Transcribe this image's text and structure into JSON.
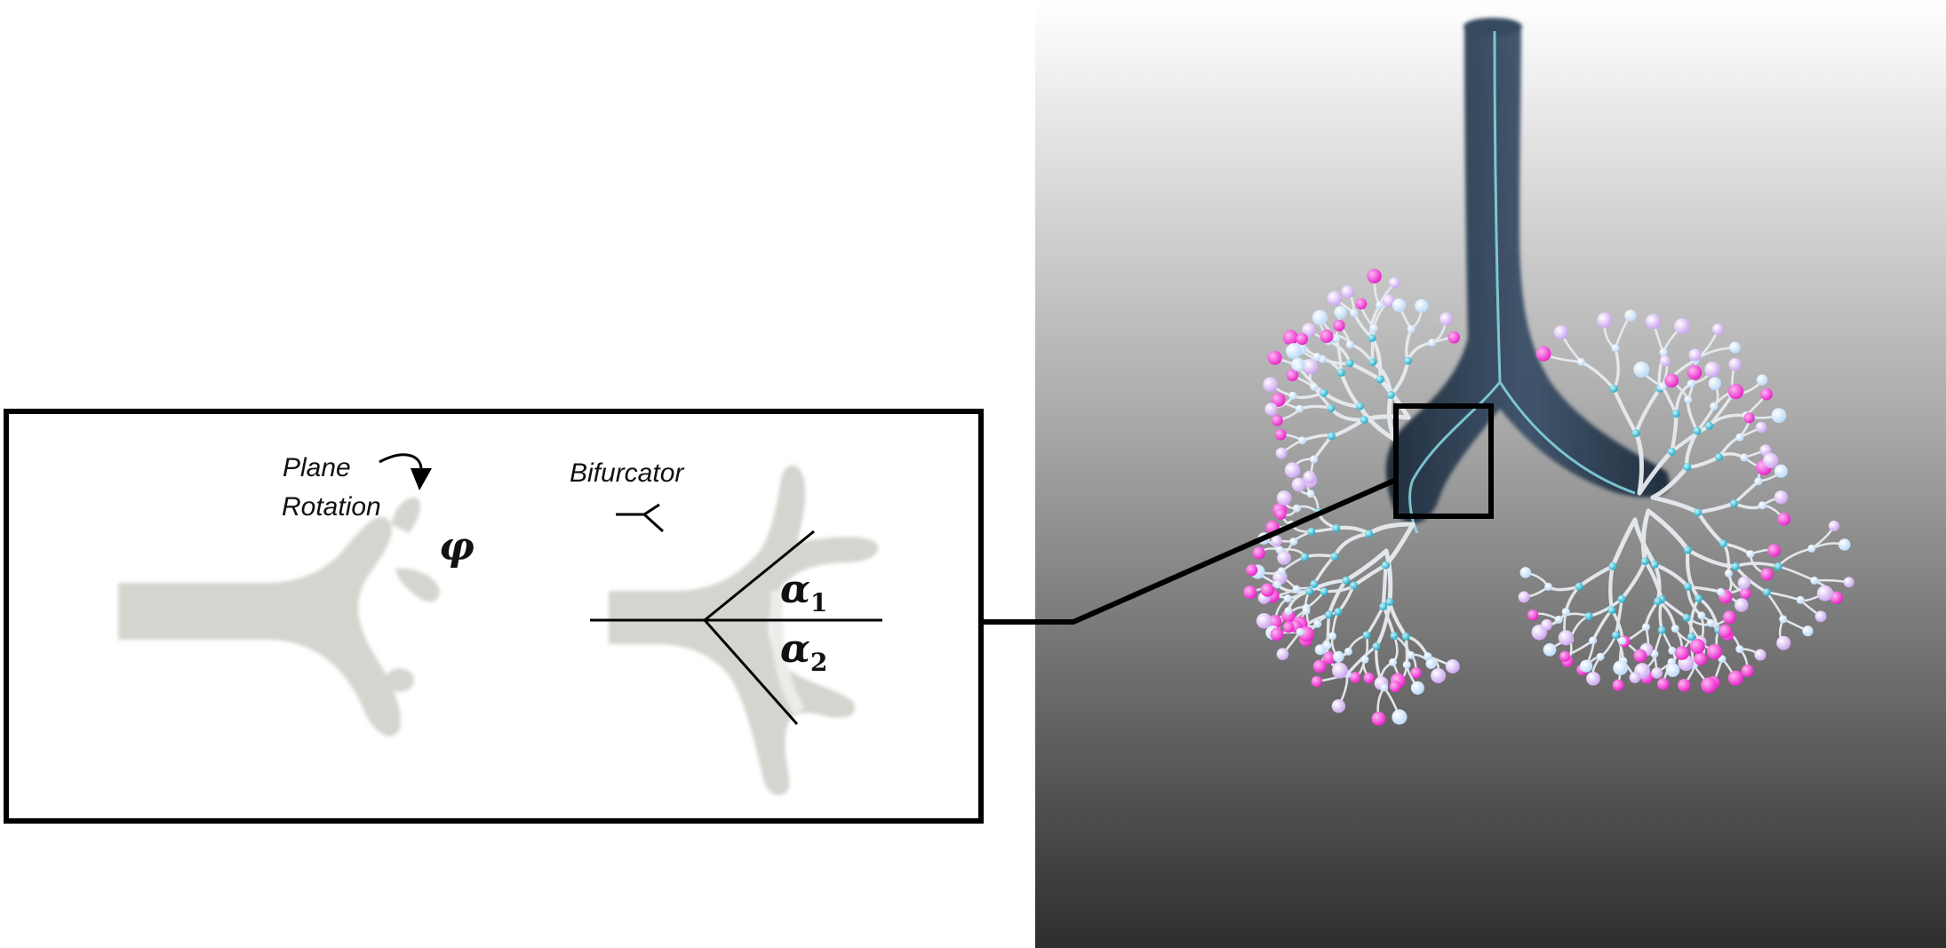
{
  "labels": {
    "plane_rotation_line1": "Plane",
    "plane_rotation_line2": "Rotation",
    "phi": "φ",
    "bifurcator": "Bifurcator",
    "alpha": "α",
    "alpha1_sub": "1",
    "alpha2_sub": "2"
  },
  "colors": {
    "branch_fill": "#d5d4cf",
    "airway_trunk": "#2b3e53",
    "centerline": "#8fe3ef",
    "branch_line": "#e8ecf0",
    "node_violet": "#d9b8f2",
    "node_magenta": "#ff46e0",
    "node_cyan": "#3bc4da",
    "node_light": "#e6f4ff",
    "panel_bg_top": "#ffffff",
    "panel_bg_bottom": "#323232"
  },
  "icons": [
    "rotation-arrow-icon",
    "bifurcator-icon"
  ]
}
